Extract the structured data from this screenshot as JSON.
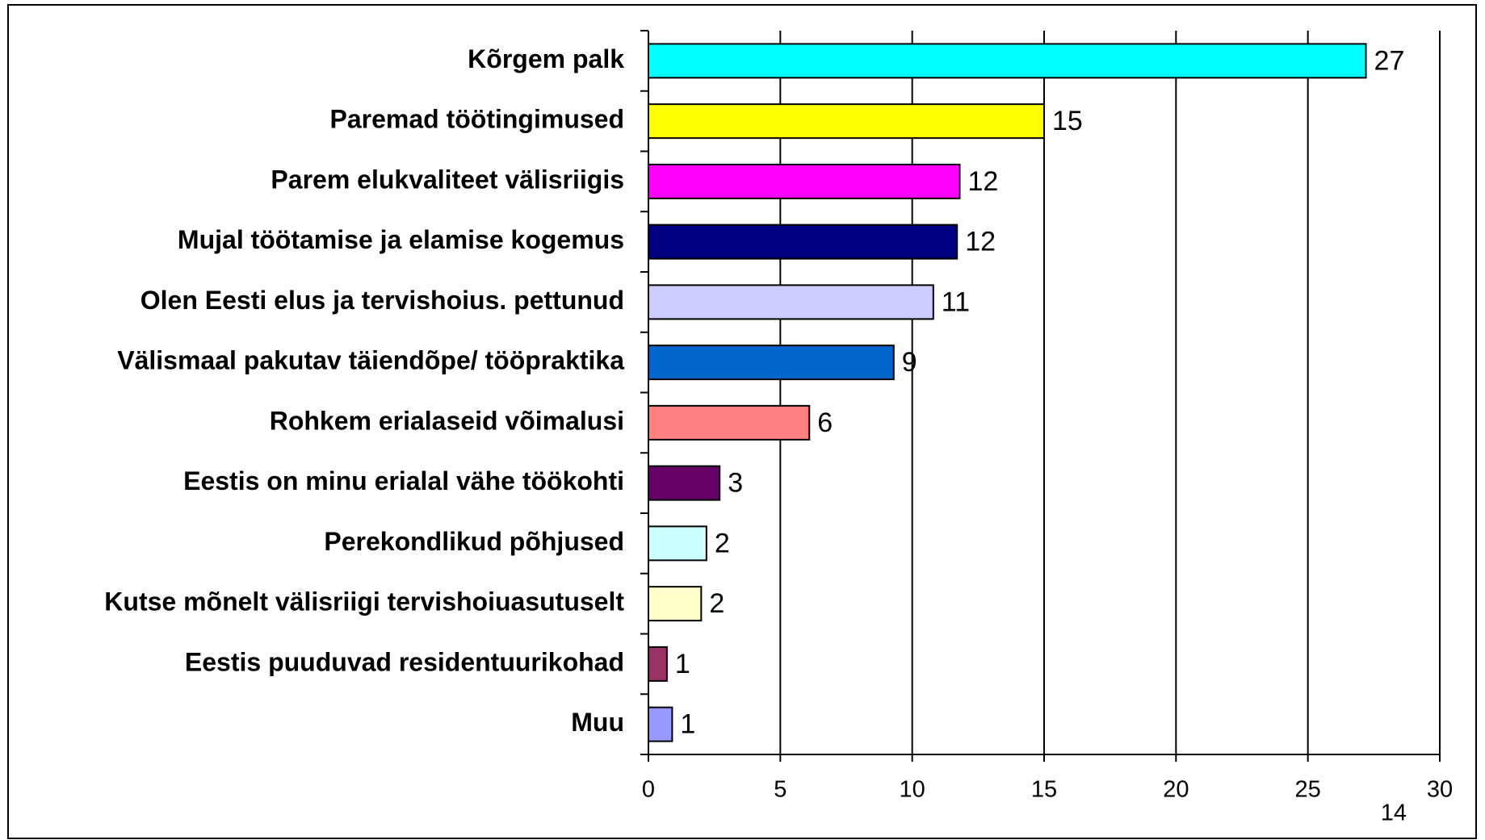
{
  "chart_data": {
    "type": "bar",
    "categories": [
      "Kõrgem palk",
      "Paremad töötingimused",
      "Parem elukvaliteet välisriigis",
      "Mujal töötamise ja elamise kogemus",
      "Olen Eesti elus ja tervishoius. pettunud",
      "Välismaal pakutav täiendõpe/ tööpraktika",
      "Rohkem erialaseid võimalusi",
      "Eestis on minu erialal vähe töökohti",
      "Perekondlikud põhjused",
      "Kutse mõnelt välisriigi tervishoiuasutuselt",
      "Eestis puuduvad residentuurikohad",
      "Muu"
    ],
    "values": [
      27.2,
      15.0,
      11.8,
      11.7,
      10.8,
      9.3,
      6.1,
      2.7,
      2.2,
      2.0,
      0.7,
      0.9
    ],
    "value_labels": [
      "27",
      "15",
      "12",
      "12",
      "11",
      "9",
      "6",
      "3",
      "2",
      "2",
      "1",
      "1"
    ],
    "colors": [
      "#00ffff",
      "#ffff00",
      "#ff00ff",
      "#000080",
      "#ccccff",
      "#0066cc",
      "#ff8080",
      "#660066",
      "#ccffff",
      "#ffffcc",
      "#993366",
      "#9999ff"
    ],
    "xlim": [
      0,
      30
    ],
    "xticks": [
      0,
      5,
      10,
      15,
      20,
      25,
      30
    ],
    "grid": true,
    "page_number": "14"
  }
}
